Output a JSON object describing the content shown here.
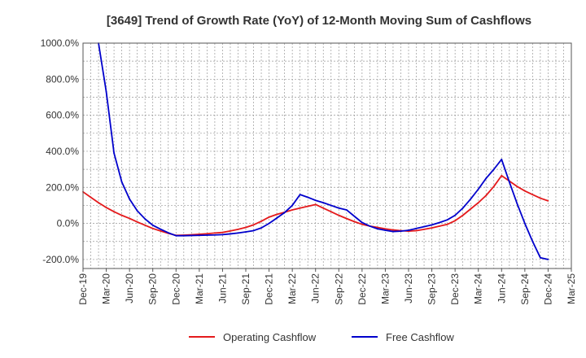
{
  "chart_data": {
    "type": "line",
    "title": "[3649]  Trend of Growth Rate (YoY) of 12-Month Moving Sum of Cashflows",
    "xlabel": "",
    "ylabel": "",
    "ylim": [
      -250,
      1000
    ],
    "y_ticks": [
      1000,
      800,
      600,
      400,
      200,
      0,
      -200
    ],
    "y_tick_labels": [
      "1000.0%",
      "800.0%",
      "600.0%",
      "400.0%",
      "200.0%",
      "0.0%",
      "-200.0%"
    ],
    "x_ticks": [
      "Dec-19",
      "Mar-20",
      "Jun-20",
      "Sep-20",
      "Dec-20",
      "Mar-21",
      "Jun-21",
      "Sep-21",
      "Dec-21",
      "Mar-22",
      "Jun-22",
      "Sep-22",
      "Dec-22",
      "Mar-23",
      "Jun-23",
      "Sep-23",
      "Dec-23",
      "Mar-24",
      "Jun-24",
      "Sep-24",
      "Dec-24",
      "Mar-25"
    ],
    "grid": true,
    "legend_position": "bottom",
    "x": [
      "Dec-19",
      "Jan-20",
      "Feb-20",
      "Mar-20",
      "Apr-20",
      "May-20",
      "Jun-20",
      "Jul-20",
      "Aug-20",
      "Sep-20",
      "Oct-20",
      "Nov-20",
      "Dec-20",
      "Jan-21",
      "Feb-21",
      "Mar-21",
      "Apr-21",
      "May-21",
      "Jun-21",
      "Jul-21",
      "Aug-21",
      "Sep-21",
      "Oct-21",
      "Nov-21",
      "Dec-21",
      "Jan-22",
      "Feb-22",
      "Mar-22",
      "Apr-22",
      "May-22",
      "Jun-22",
      "Jul-22",
      "Aug-22",
      "Sep-22",
      "Oct-22",
      "Nov-22",
      "Dec-22",
      "Jan-23",
      "Feb-23",
      "Mar-23",
      "Apr-23",
      "May-23",
      "Jun-23",
      "Jul-23",
      "Aug-23",
      "Sep-23",
      "Oct-23",
      "Nov-23",
      "Dec-23",
      "Jan-24",
      "Feb-24",
      "Mar-24",
      "Apr-24",
      "May-24",
      "Jun-24",
      "Jul-24",
      "Aug-24",
      "Sep-24",
      "Oct-24",
      "Nov-24",
      "Dec-24"
    ],
    "series": [
      {
        "name": "Operating Cashflow",
        "color": "#e41a1c",
        "values": [
          175,
          145,
          115,
          88,
          65,
          45,
          28,
          8,
          -10,
          -28,
          -42,
          -55,
          -66,
          -65,
          -63,
          -60,
          -57,
          -53,
          -50,
          -42,
          -33,
          -22,
          -8,
          12,
          35,
          50,
          62,
          75,
          85,
          95,
          105,
          85,
          65,
          45,
          27,
          10,
          -5,
          -15,
          -22,
          -30,
          -36,
          -40,
          -43,
          -40,
          -33,
          -25,
          -15,
          -5,
          15,
          45,
          80,
          115,
          155,
          205,
          265,
          235,
          205,
          180,
          160,
          140,
          125
        ]
      },
      {
        "name": "Free Cashflow",
        "color": "#0000cc",
        "values": [
          null,
          null,
          1000,
          730,
          390,
          230,
          135,
          70,
          25,
          -10,
          -32,
          -52,
          -68,
          -68,
          -67,
          -66,
          -65,
          -64,
          -62,
          -58,
          -53,
          -47,
          -40,
          -25,
          0,
          30,
          60,
          100,
          160,
          145,
          128,
          115,
          100,
          85,
          75,
          40,
          5,
          -15,
          -30,
          -38,
          -45,
          -43,
          -38,
          -28,
          -18,
          -8,
          5,
          20,
          45,
          85,
          135,
          190,
          250,
          300,
          355,
          230,
          110,
          0,
          -100,
          -190,
          -200
        ]
      }
    ]
  }
}
